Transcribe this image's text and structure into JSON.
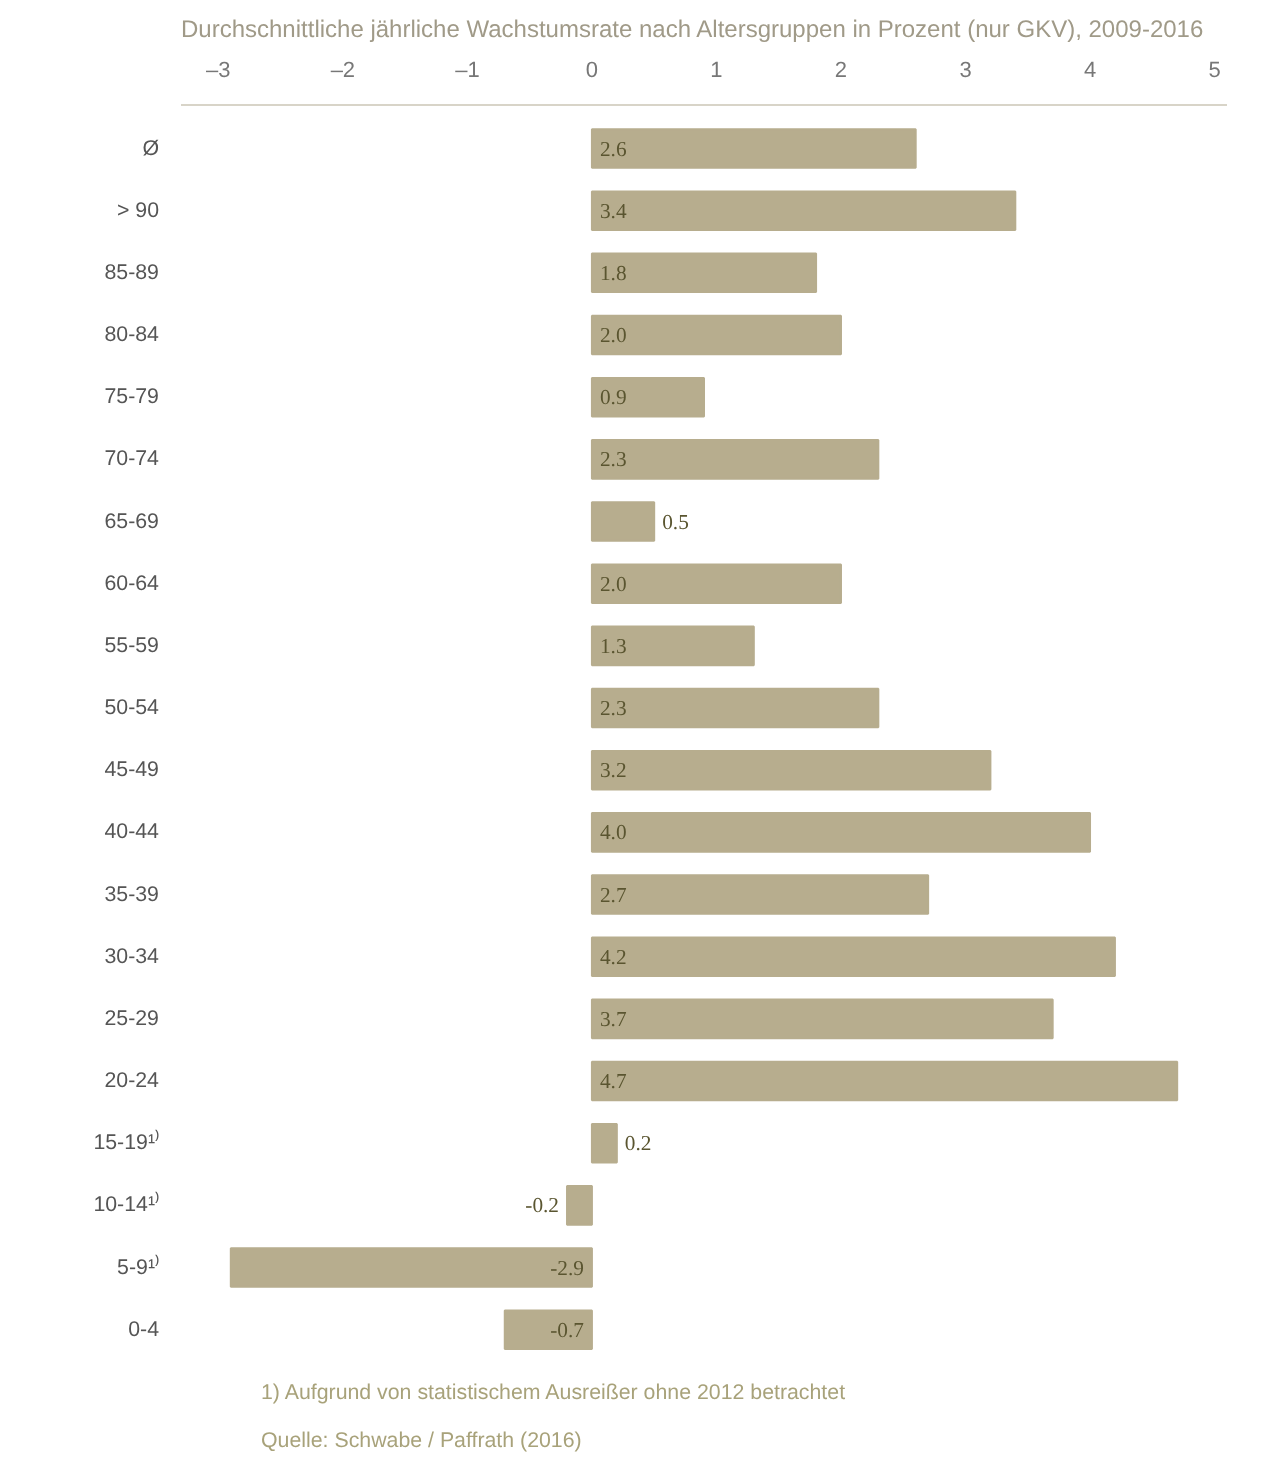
{
  "chart_data": {
    "type": "bar",
    "orientation": "horizontal",
    "title": "Durchschnittliche jährliche Wachstumsrate nach Altersgruppen in Prozent (nur GKV), 2009-2016",
    "categories": [
      "Ø",
      "> 90",
      "85-89",
      "80-84",
      "75-79",
      "70-74",
      "65-69",
      "60-64",
      "55-59",
      "50-54",
      "45-49",
      "40-44",
      "35-39",
      "30-34",
      "25-29",
      "20-24",
      "15-19¹⁾",
      "10-14¹⁾",
      "5-9¹⁾",
      "0-4"
    ],
    "values": [
      2.6,
      3.4,
      1.8,
      2.0,
      0.9,
      2.3,
      0.5,
      2.0,
      1.3,
      2.3,
      3.2,
      4.0,
      2.7,
      4.2,
      3.7,
      4.7,
      0.2,
      -0.2,
      -2.9,
      -0.7
    ],
    "value_labels": [
      "2.6",
      "3.4",
      "1.8",
      "2.0",
      "0.9",
      "2.3",
      "0.5",
      "2.0",
      "1.3",
      "2.3",
      "3.2",
      "4.0",
      "2.7",
      "4.2",
      "3.7",
      "4.7",
      "0.2",
      "-0.2",
      "-2.9",
      "-0.7"
    ],
    "color": "#b7ad8e",
    "grid": false,
    "xlim": [
      -3.3,
      5.1
    ],
    "xticks": [
      {
        "value": -3,
        "label": "–3"
      },
      {
        "value": -2,
        "label": "–2"
      },
      {
        "value": -1,
        "label": "–1"
      },
      0,
      1,
      2,
      3,
      4,
      5
    ],
    "annotations": [
      "1) Aufgrund von statistischem Ausreißer ohne 2012 betrachtet",
      "Quelle: Schwabe / Paffrath (2016)"
    ]
  }
}
